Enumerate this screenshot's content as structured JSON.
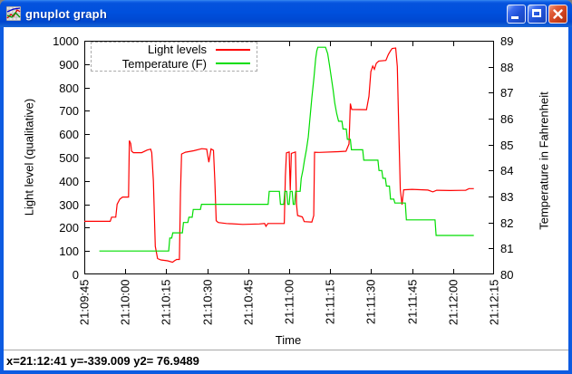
{
  "window": {
    "title": "gnuplot graph",
    "icon": "gnuplot-chart-icon",
    "buttons": [
      {
        "name": "minimize",
        "icon": "minimize-icon"
      },
      {
        "name": "maximize",
        "icon": "maximize-icon"
      },
      {
        "name": "close",
        "icon": "close-icon"
      }
    ]
  },
  "status_bar": {
    "text": "x=21:12:41 y=-339.009 y2= 76.9489"
  },
  "chart_data": {
    "type": "line",
    "xlabel": "Time",
    "ylabel_left": "Light level (qualitative)",
    "ylabel_right": "Temperature in Fahrenheit",
    "x_range_seconds": [
      0,
      150
    ],
    "x_tick_interval_seconds": 15,
    "x_ticks": [
      "21:09:45",
      "21:10:00",
      "21:10:15",
      "21:10:30",
      "21:10:45",
      "21:11:00",
      "21:11:15",
      "21:11:30",
      "21:11:45",
      "21:12:00",
      "21:12:15"
    ],
    "y_left": {
      "min": 0,
      "max": 1000,
      "step": 100,
      "ticks": [
        "0",
        "100",
        "200",
        "300",
        "400",
        "500",
        "600",
        "700",
        "800",
        "900",
        "1000"
      ]
    },
    "y_right": {
      "min": 80,
      "max": 89,
      "step": 1,
      "ticks": [
        "80",
        "81",
        "82",
        "83",
        "84",
        "85",
        "86",
        "87",
        "88",
        "89"
      ]
    },
    "grid": false,
    "legend_position": "top-left-inside",
    "legend": [
      {
        "label": "Light levels",
        "color": "#ff0000"
      },
      {
        "label": "Temperature (F)",
        "color": "#00dd00"
      }
    ],
    "series": [
      {
        "name": "Light levels",
        "axis": "left",
        "color": "#ff0000",
        "points": [
          [
            0,
            227
          ],
          [
            9.5,
            227
          ],
          [
            10,
            245
          ],
          [
            11.5,
            245
          ],
          [
            12,
            300
          ],
          [
            13,
            322
          ],
          [
            14,
            331
          ],
          [
            16.2,
            331
          ],
          [
            16.5,
            573
          ],
          [
            17,
            560
          ],
          [
            17.3,
            528
          ],
          [
            18,
            521
          ],
          [
            21,
            521
          ],
          [
            23,
            532
          ],
          [
            24.3,
            536
          ],
          [
            24.7,
            521
          ],
          [
            25.3,
            400
          ],
          [
            26,
            120
          ],
          [
            26.8,
            68
          ],
          [
            28,
            62
          ],
          [
            30.5,
            58
          ],
          [
            32.3,
            52
          ],
          [
            33,
            58
          ],
          [
            33.8,
            64
          ],
          [
            34.8,
            64
          ],
          [
            35.2,
            350
          ],
          [
            35.6,
            515
          ],
          [
            37,
            523
          ],
          [
            40,
            529
          ],
          [
            43,
            538
          ],
          [
            44.8,
            536
          ],
          [
            45.6,
            480
          ],
          [
            46.4,
            537
          ],
          [
            47.3,
            531
          ],
          [
            47.8,
            400
          ],
          [
            48.3,
            230
          ],
          [
            49,
            222
          ],
          [
            52,
            218
          ],
          [
            58,
            214
          ],
          [
            64,
            216
          ],
          [
            66,
            218
          ],
          [
            66.5,
            206
          ],
          [
            67.2,
            218
          ],
          [
            73.2,
            218
          ],
          [
            73.6,
            420
          ],
          [
            74,
            520
          ],
          [
            75,
            524
          ],
          [
            75.4,
            360
          ],
          [
            75.8,
            518
          ],
          [
            77.3,
            524
          ],
          [
            77.7,
            300
          ],
          [
            78.1,
            252
          ],
          [
            79.8,
            246
          ],
          [
            80.5,
            226
          ],
          [
            83.3,
            224
          ],
          [
            84,
            252
          ],
          [
            84.3,
            523
          ],
          [
            86,
            522
          ],
          [
            93,
            525
          ],
          [
            95.8,
            527
          ],
          [
            96.9,
            558
          ],
          [
            97.4,
            731
          ],
          [
            97.9,
            706
          ],
          [
            103.3,
            705
          ],
          [
            104.2,
            762
          ],
          [
            104.9,
            868
          ],
          [
            105.6,
            892
          ],
          [
            106.2,
            878
          ],
          [
            106.9,
            903
          ],
          [
            107.8,
            913
          ],
          [
            110.4,
            916
          ],
          [
            111.3,
            941
          ],
          [
            112.1,
            957
          ],
          [
            112.7,
            967
          ],
          [
            114,
            969
          ],
          [
            114.6,
            890
          ],
          [
            115.1,
            640
          ],
          [
            115.7,
            362
          ],
          [
            116.3,
            298
          ],
          [
            116.9,
            362
          ],
          [
            120,
            364
          ],
          [
            125.8,
            361
          ],
          [
            127.6,
            353
          ],
          [
            129,
            360
          ],
          [
            134,
            359
          ],
          [
            139.6,
            360
          ],
          [
            140.8,
            367
          ],
          [
            142.6,
            367
          ]
        ]
      },
      {
        "name": "Temperature (F)",
        "axis": "right",
        "color": "#00dd00",
        "points": [
          [
            5.5,
            80.9
          ],
          [
            30.9,
            80.9
          ],
          [
            31.3,
            81.4
          ],
          [
            32,
            81.4
          ],
          [
            32.4,
            81.6
          ],
          [
            35.9,
            81.6
          ],
          [
            36.3,
            82.0
          ],
          [
            37.9,
            82.0
          ],
          [
            38.3,
            82.2
          ],
          [
            39.5,
            82.2
          ],
          [
            39.9,
            82.5
          ],
          [
            42.5,
            82.5
          ],
          [
            42.9,
            82.7
          ],
          [
            67.3,
            82.7
          ],
          [
            67.7,
            83.2
          ],
          [
            71.4,
            83.2
          ],
          [
            71.8,
            82.7
          ],
          [
            73,
            82.7
          ],
          [
            73.4,
            83.2
          ],
          [
            74.1,
            83.2
          ],
          [
            74.5,
            82.7
          ],
          [
            75,
            82.7
          ],
          [
            75.4,
            83.2
          ],
          [
            76.1,
            83.2
          ],
          [
            76.5,
            82.7
          ],
          [
            77,
            82.7
          ],
          [
            77.4,
            83.2
          ],
          [
            79,
            83.2
          ],
          [
            79.4,
            83.7
          ],
          [
            80,
            84.0
          ],
          [
            80.6,
            84.4
          ],
          [
            81.3,
            84.8
          ],
          [
            82,
            85.3
          ],
          [
            82.6,
            86.0
          ],
          [
            83.3,
            86.8
          ],
          [
            84.1,
            87.6
          ],
          [
            84.7,
            88.3
          ],
          [
            85.1,
            88.6
          ],
          [
            85.5,
            88.75
          ],
          [
            88.3,
            88.75
          ],
          [
            89.1,
            88.5
          ],
          [
            89.7,
            88.1
          ],
          [
            90.4,
            87.6
          ],
          [
            91.1,
            87.1
          ],
          [
            91.7,
            86.6
          ],
          [
            92.4,
            86.2
          ],
          [
            93.1,
            85.9
          ],
          [
            94.3,
            85.9
          ],
          [
            94.7,
            85.6
          ],
          [
            95.9,
            85.6
          ],
          [
            96.3,
            85.2
          ],
          [
            97.4,
            85.2
          ],
          [
            97.8,
            84.8
          ],
          [
            101.9,
            84.8
          ],
          [
            102.3,
            84.4
          ],
          [
            107.5,
            84.4
          ],
          [
            107.9,
            84.0
          ],
          [
            108.9,
            84.0
          ],
          [
            109.3,
            83.7
          ],
          [
            110.2,
            83.7
          ],
          [
            110.6,
            83.4
          ],
          [
            111.7,
            83.4
          ],
          [
            112.1,
            82.9
          ],
          [
            113.3,
            82.9
          ],
          [
            113.7,
            82.75
          ],
          [
            117.5,
            82.75
          ],
          [
            117.9,
            82.1
          ],
          [
            128.4,
            82.1
          ],
          [
            128.8,
            81.5
          ],
          [
            142.6,
            81.5
          ]
        ]
      }
    ]
  }
}
